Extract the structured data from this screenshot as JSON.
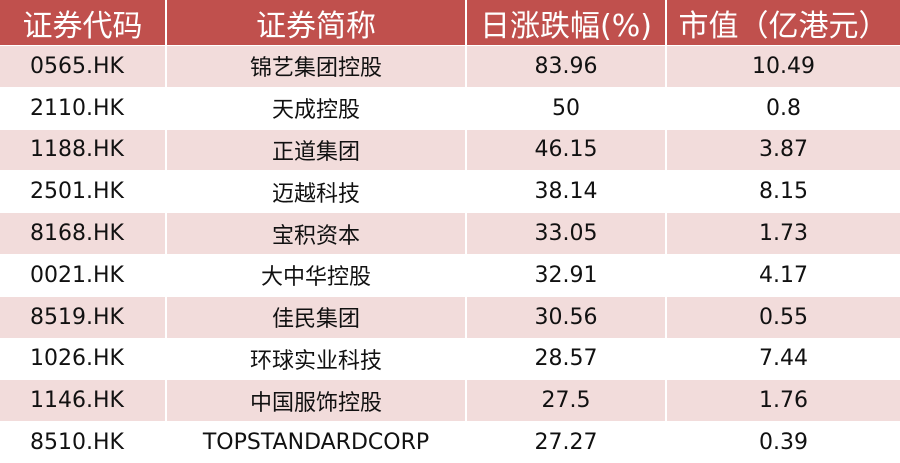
{
  "table": {
    "headers": [
      "证券代码",
      "证券简称",
      "日涨跌幅(%)",
      "市值（亿港元）"
    ],
    "rows": [
      [
        "0565.HK",
        "锦艺集团控股",
        "83.96",
        "10.49"
      ],
      [
        "2110.HK",
        "天成控股",
        "50",
        "0.8"
      ],
      [
        "1188.HK",
        "正道集团",
        "46.15",
        "3.87"
      ],
      [
        "2501.HK",
        "迈越科技",
        "38.14",
        "8.15"
      ],
      [
        "8168.HK",
        "宝积资本",
        "33.05",
        "1.73"
      ],
      [
        "0021.HK",
        "大中华控股",
        "32.91",
        "4.17"
      ],
      [
        "8519.HK",
        "佳民集团",
        "30.56",
        "0.55"
      ],
      [
        "1026.HK",
        "环球实业科技",
        "28.57",
        "7.44"
      ],
      [
        "1146.HK",
        "中国服饰控股",
        "27.5",
        "1.76"
      ],
      [
        "8510.HK",
        "TOPSTANDARDCORP",
        "27.27",
        "0.39"
      ]
    ]
  },
  "colors": {
    "header_bg": "#c0504d",
    "header_text": "#ffffff",
    "band_row": "#f2dcdb"
  }
}
